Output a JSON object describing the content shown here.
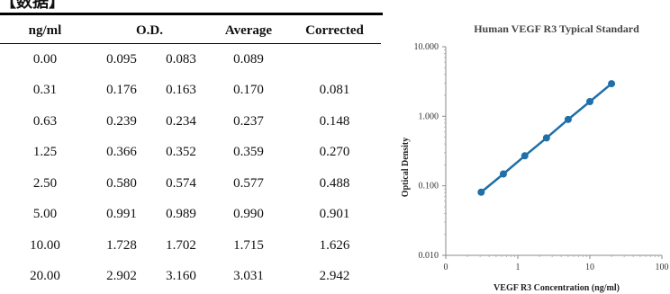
{
  "table": {
    "headers": [
      "ng/ml",
      "O.D.",
      "Average",
      "Corrected"
    ],
    "rows": [
      [
        "0.00",
        "0.095",
        "0.083",
        "0.089",
        ""
      ],
      [
        "0.31",
        "0.176",
        "0.163",
        "0.170",
        "0.081"
      ],
      [
        "0.63",
        "0.239",
        "0.234",
        "0.237",
        "0.148"
      ],
      [
        "1.25",
        "0.366",
        "0.352",
        "0.359",
        "0.270"
      ],
      [
        "2.50",
        "0.580",
        "0.574",
        "0.577",
        "0.488"
      ],
      [
        "5.00",
        "0.991",
        "0.989",
        "0.990",
        "0.901"
      ],
      [
        "10.00",
        "1.728",
        "1.702",
        "1.715",
        "1.626"
      ],
      [
        "20.00",
        "2.902",
        "3.160",
        "3.031",
        "2.942"
      ]
    ]
  },
  "chart_data": {
    "type": "line",
    "title": "Human VEGF R3 Typical Standard",
    "xlabel": "VEGF R3 Concentration (ng/ml)",
    "ylabel": "Optical Density",
    "x_scale": "log",
    "y_scale": "log",
    "xlim": [
      0.1,
      100
    ],
    "ylim": [
      0.01,
      10
    ],
    "x_ticks": [
      "0",
      "1",
      "10",
      "100"
    ],
    "y_ticks": [
      "0.010",
      "0.100",
      "1.000",
      "10.000"
    ],
    "grid": false,
    "legend": "none",
    "series": [
      {
        "x": [
          0.31,
          0.63,
          1.25,
          2.5,
          5,
          10,
          20
        ],
        "y": [
          0.081,
          0.148,
          0.27,
          0.488,
          0.901,
          1.626,
          2.942
        ],
        "color": "#1f6fa8"
      }
    ]
  }
}
